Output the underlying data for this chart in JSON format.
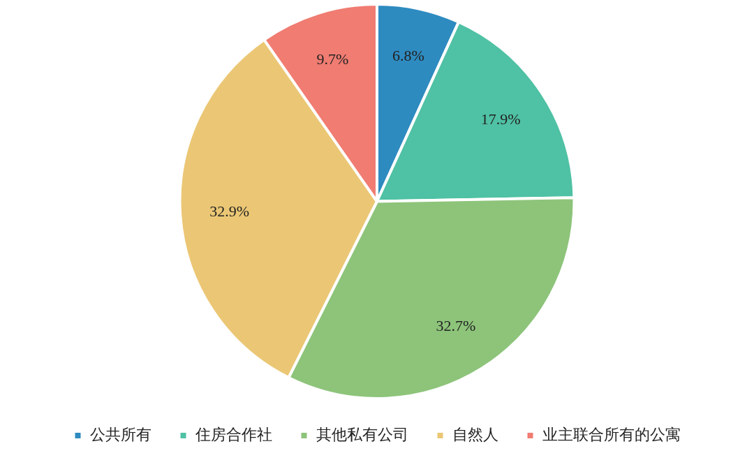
{
  "chart_data": {
    "type": "pie",
    "categories": [
      "公共所有",
      "住房合作社",
      "其他私有公司",
      "自然人",
      "业主联合所有的公寓"
    ],
    "values": [
      6.8,
      17.9,
      32.7,
      32.9,
      9.7
    ],
    "value_labels": [
      "6.8%",
      "17.9%",
      "32.7%",
      "32.9%",
      "9.7%"
    ],
    "colors": [
      "#2e8bc0",
      "#4fc1a4",
      "#8dc47a",
      "#ebc775",
      "#f07c72"
    ],
    "legend": "bottom"
  }
}
